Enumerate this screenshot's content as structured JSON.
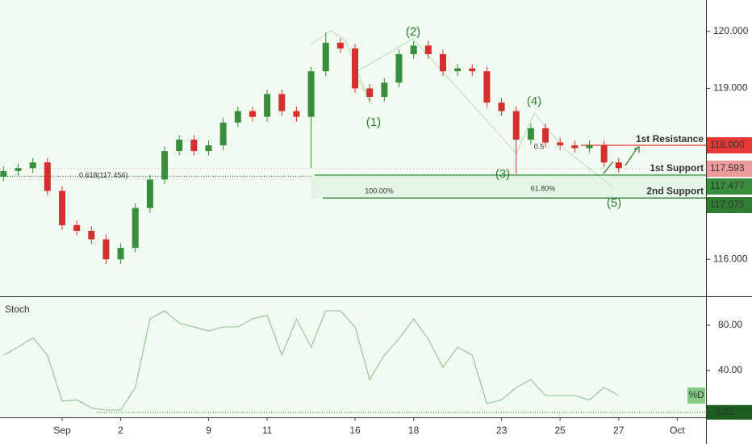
{
  "chart_data": [
    {
      "type": "candlestick",
      "x": [
        -2,
        -1.5,
        -1,
        -0.5,
        0,
        0.5,
        1,
        1.5,
        2,
        2.5,
        3,
        3.5,
        4,
        4.5,
        5,
        5.5,
        6,
        6.5,
        7,
        7.5,
        8,
        8.5,
        9,
        9.5,
        10,
        10.5,
        11,
        11.5,
        12,
        12.5,
        13,
        13.5,
        14,
        14.5,
        15,
        15.5,
        16,
        16.5,
        17,
        17.5,
        18,
        18.5,
        19
      ],
      "open": [
        117.45,
        117.55,
        117.6,
        117.7,
        117.2,
        116.6,
        116.5,
        116.35,
        116.0,
        116.2,
        116.9,
        117.4,
        117.9,
        118.1,
        117.9,
        118.0,
        118.4,
        118.6,
        118.5,
        118.9,
        118.6,
        118.5,
        119.3,
        119.8,
        119.7,
        119.0,
        118.85,
        119.1,
        119.6,
        119.75,
        119.6,
        119.3,
        119.35,
        119.3,
        118.75,
        118.6,
        118.1,
        118.3,
        118.05,
        118.0,
        117.95,
        118.0,
        117.7
      ],
      "high": [
        117.63,
        117.68,
        117.78,
        117.78,
        117.28,
        116.68,
        116.58,
        116.43,
        116.28,
        116.98,
        117.48,
        117.98,
        118.18,
        118.18,
        118.08,
        118.48,
        118.68,
        118.68,
        118.98,
        118.98,
        118.68,
        119.38,
        119.98,
        119.88,
        119.78,
        119.08,
        119.18,
        119.68,
        119.83,
        119.83,
        119.68,
        119.43,
        119.43,
        119.38,
        118.83,
        118.68,
        118.38,
        118.38,
        118.13,
        118.08,
        118.08,
        118.08,
        117.78
      ],
      "low": [
        117.37,
        117.47,
        117.52,
        117.12,
        116.52,
        116.42,
        116.27,
        115.92,
        115.92,
        116.12,
        116.82,
        117.32,
        117.82,
        117.82,
        117.82,
        117.92,
        118.32,
        118.42,
        118.42,
        118.52,
        118.42,
        117.6,
        119.22,
        119.62,
        118.92,
        118.77,
        118.77,
        119.02,
        119.52,
        119.52,
        119.22,
        119.22,
        119.22,
        118.67,
        118.52,
        117.5,
        118.02,
        117.97,
        117.92,
        117.87,
        117.87,
        117.62,
        117.52
      ],
      "close": [
        117.55,
        117.6,
        117.7,
        117.2,
        116.6,
        116.5,
        116.35,
        116.0,
        116.2,
        116.9,
        117.4,
        117.9,
        118.1,
        117.9,
        118.0,
        118.4,
        118.6,
        118.5,
        118.9,
        118.6,
        118.5,
        119.3,
        119.8,
        119.7,
        119.0,
        118.85,
        119.1,
        119.6,
        119.75,
        119.6,
        119.3,
        119.35,
        119.3,
        118.75,
        118.6,
        118.1,
        118.3,
        118.05,
        118.0,
        117.95,
        118.0,
        117.7,
        117.6
      ],
      "up_color": "#388e3c",
      "down_color": "#d32f2f",
      "xlim": [
        -2.12,
        21.98
      ],
      "xticks": [
        {
          "value": 0,
          "label": "Sep"
        },
        2,
        {
          "value": 5,
          "label": "9"
        },
        {
          "value": 7,
          "label": "11"
        },
        {
          "value": 10,
          "label": "16"
        },
        {
          "value": 12,
          "label": "18"
        },
        {
          "value": 15,
          "label": "23"
        },
        {
          "value": 17,
          "label": "25"
        },
        {
          "value": 19,
          "label": "27"
        },
        {
          "value": 21,
          "label": "Oct"
        }
      ],
      "ylim": [
        115.38,
        120.55
      ],
      "yticks": [
        {
          "value": 116,
          "label": "116.000"
        },
        {
          "value": 119,
          "label": "119.000"
        },
        {
          "value": 120,
          "label": "120.000"
        }
      ],
      "levels": [
        {
          "name": "1st Resistance",
          "value": 118,
          "label": "118.000",
          "color": "#e53935"
        },
        {
          "name": "1st Support",
          "value": 117.477,
          "label": "117.477",
          "color": "#388e3c"
        },
        {
          "name": "2nd Support",
          "value": 117.075,
          "label": "117.075",
          "color": "#2e7d32"
        }
      ],
      "last_price": {
        "value": 117.593,
        "label": "117.593"
      },
      "fib_level": {
        "value": 117.456,
        "label": "0.618(117.456)"
      },
      "annotations": [
        "(1)",
        "(2)",
        "(3)",
        "(4)",
        "(5)",
        "100.00%",
        "61.80%",
        "0.5"
      ]
    },
    {
      "type": "line",
      "title": "Stoch",
      "x": [
        -2,
        -1.5,
        -1,
        -0.5,
        0,
        0.5,
        1,
        1.5,
        2,
        2.5,
        3,
        3.5,
        4,
        4.5,
        5,
        5.5,
        6,
        6.5,
        7,
        7.5,
        8,
        8.5,
        9,
        9.5,
        10,
        10.5,
        11,
        11.5,
        12,
        12.5,
        13,
        13.5,
        14,
        14.5,
        15,
        15.5,
        16,
        16.5,
        17,
        17.5,
        18,
        18.5,
        19
      ],
      "series": [
        {
          "name": "%D",
          "color": "#9cc59c",
          "values": [
            53.6,
            60.7,
            69,
            53.6,
            12.9,
            14,
            7,
            5,
            5,
            25,
            85.7,
            92.9,
            82,
            78.6,
            75,
            78.6,
            78.6,
            85.7,
            89,
            53.6,
            85.7,
            60.7,
            92.9,
            92.9,
            78.6,
            32,
            53.6,
            68,
            85.7,
            68,
            42.9,
            60.7,
            53.6,
            10.7,
            14,
            25,
            32,
            17.9,
            17.9,
            17.9,
            14,
            25,
            17.9
          ]
        }
      ],
      "ylim": [
        0,
        100
      ],
      "yticks": [
        {
          "value": 40,
          "label": "40.00"
        },
        {
          "value": 80,
          "label": "80.00"
        }
      ],
      "min_level": {
        "value": 3.03,
        "label": "3.03"
      }
    }
  ]
}
